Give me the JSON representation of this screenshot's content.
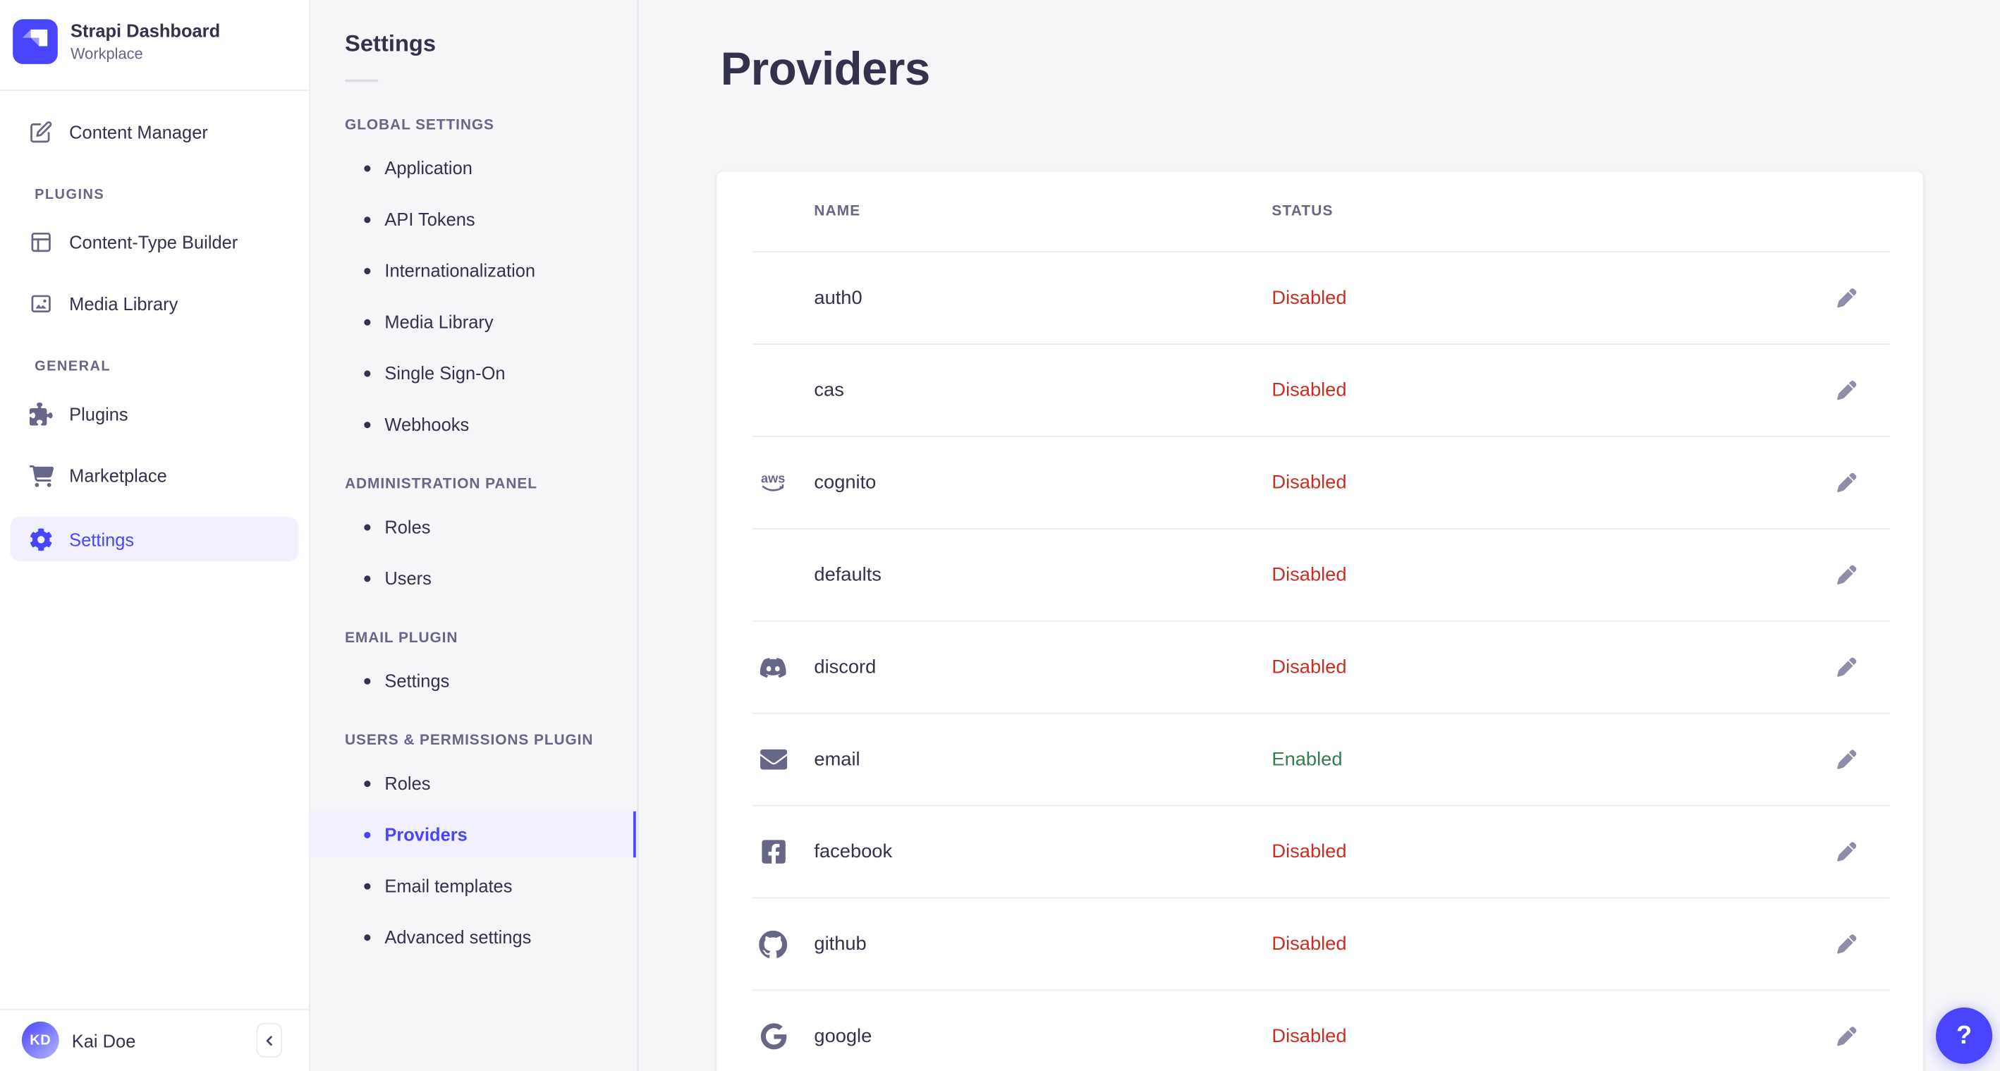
{
  "brand": {
    "title": "Strapi Dashboard",
    "subtitle": "Workplace"
  },
  "sidebar": {
    "groups": [
      {
        "header": null,
        "items": [
          {
            "label": "Content Manager",
            "icon": "content-manager-icon",
            "active": false
          }
        ]
      },
      {
        "header": "PLUGINS",
        "items": [
          {
            "label": "Content-Type Builder",
            "icon": "content-type-builder-icon",
            "active": false
          },
          {
            "label": "Media Library",
            "icon": "media-library-icon",
            "active": false
          }
        ]
      },
      {
        "header": "GENERAL",
        "items": [
          {
            "label": "Plugins",
            "icon": "plugins-icon",
            "active": false
          },
          {
            "label": "Marketplace",
            "icon": "marketplace-icon",
            "active": false
          },
          {
            "label": "Settings",
            "icon": "gear-icon",
            "active": true
          }
        ]
      }
    ]
  },
  "user": {
    "initials": "KD",
    "name": "Kai Doe"
  },
  "subnav": {
    "title": "Settings",
    "groups": [
      {
        "header": "GLOBAL SETTINGS",
        "items": [
          {
            "label": "Application",
            "active": false
          },
          {
            "label": "API Tokens",
            "active": false
          },
          {
            "label": "Internationalization",
            "active": false
          },
          {
            "label": "Media Library",
            "active": false
          },
          {
            "label": "Single Sign-On",
            "active": false
          },
          {
            "label": "Webhooks",
            "active": false
          }
        ]
      },
      {
        "header": "ADMINISTRATION PANEL",
        "items": [
          {
            "label": "Roles",
            "active": false
          },
          {
            "label": "Users",
            "active": false
          }
        ]
      },
      {
        "header": "EMAIL PLUGIN",
        "items": [
          {
            "label": "Settings",
            "active": false
          }
        ]
      },
      {
        "header": "USERS & PERMISSIONS PLUGIN",
        "items": [
          {
            "label": "Roles",
            "active": false
          },
          {
            "label": "Providers",
            "active": true
          },
          {
            "label": "Email templates",
            "active": false
          },
          {
            "label": "Advanced settings",
            "active": false
          }
        ]
      }
    ]
  },
  "page": {
    "title": "Providers"
  },
  "table": {
    "columns": [
      "NAME",
      "STATUS"
    ],
    "rows": [
      {
        "name": "auth0",
        "icon": null,
        "status": "Disabled"
      },
      {
        "name": "cas",
        "icon": null,
        "status": "Disabled"
      },
      {
        "name": "cognito",
        "icon": "aws-icon",
        "status": "Disabled"
      },
      {
        "name": "defaults",
        "icon": null,
        "status": "Disabled"
      },
      {
        "name": "discord",
        "icon": "discord-icon",
        "status": "Disabled"
      },
      {
        "name": "email",
        "icon": "envelope-icon",
        "status": "Enabled"
      },
      {
        "name": "facebook",
        "icon": "facebook-icon",
        "status": "Disabled"
      },
      {
        "name": "github",
        "icon": "github-icon",
        "status": "Disabled"
      },
      {
        "name": "google",
        "icon": "google-icon",
        "status": "Disabled"
      }
    ]
  },
  "help": {
    "label": "?"
  },
  "colors": {
    "accent": "#4945ff",
    "activeBg": "#f0f0ff",
    "danger": "#d02b20",
    "success": "#328048"
  }
}
